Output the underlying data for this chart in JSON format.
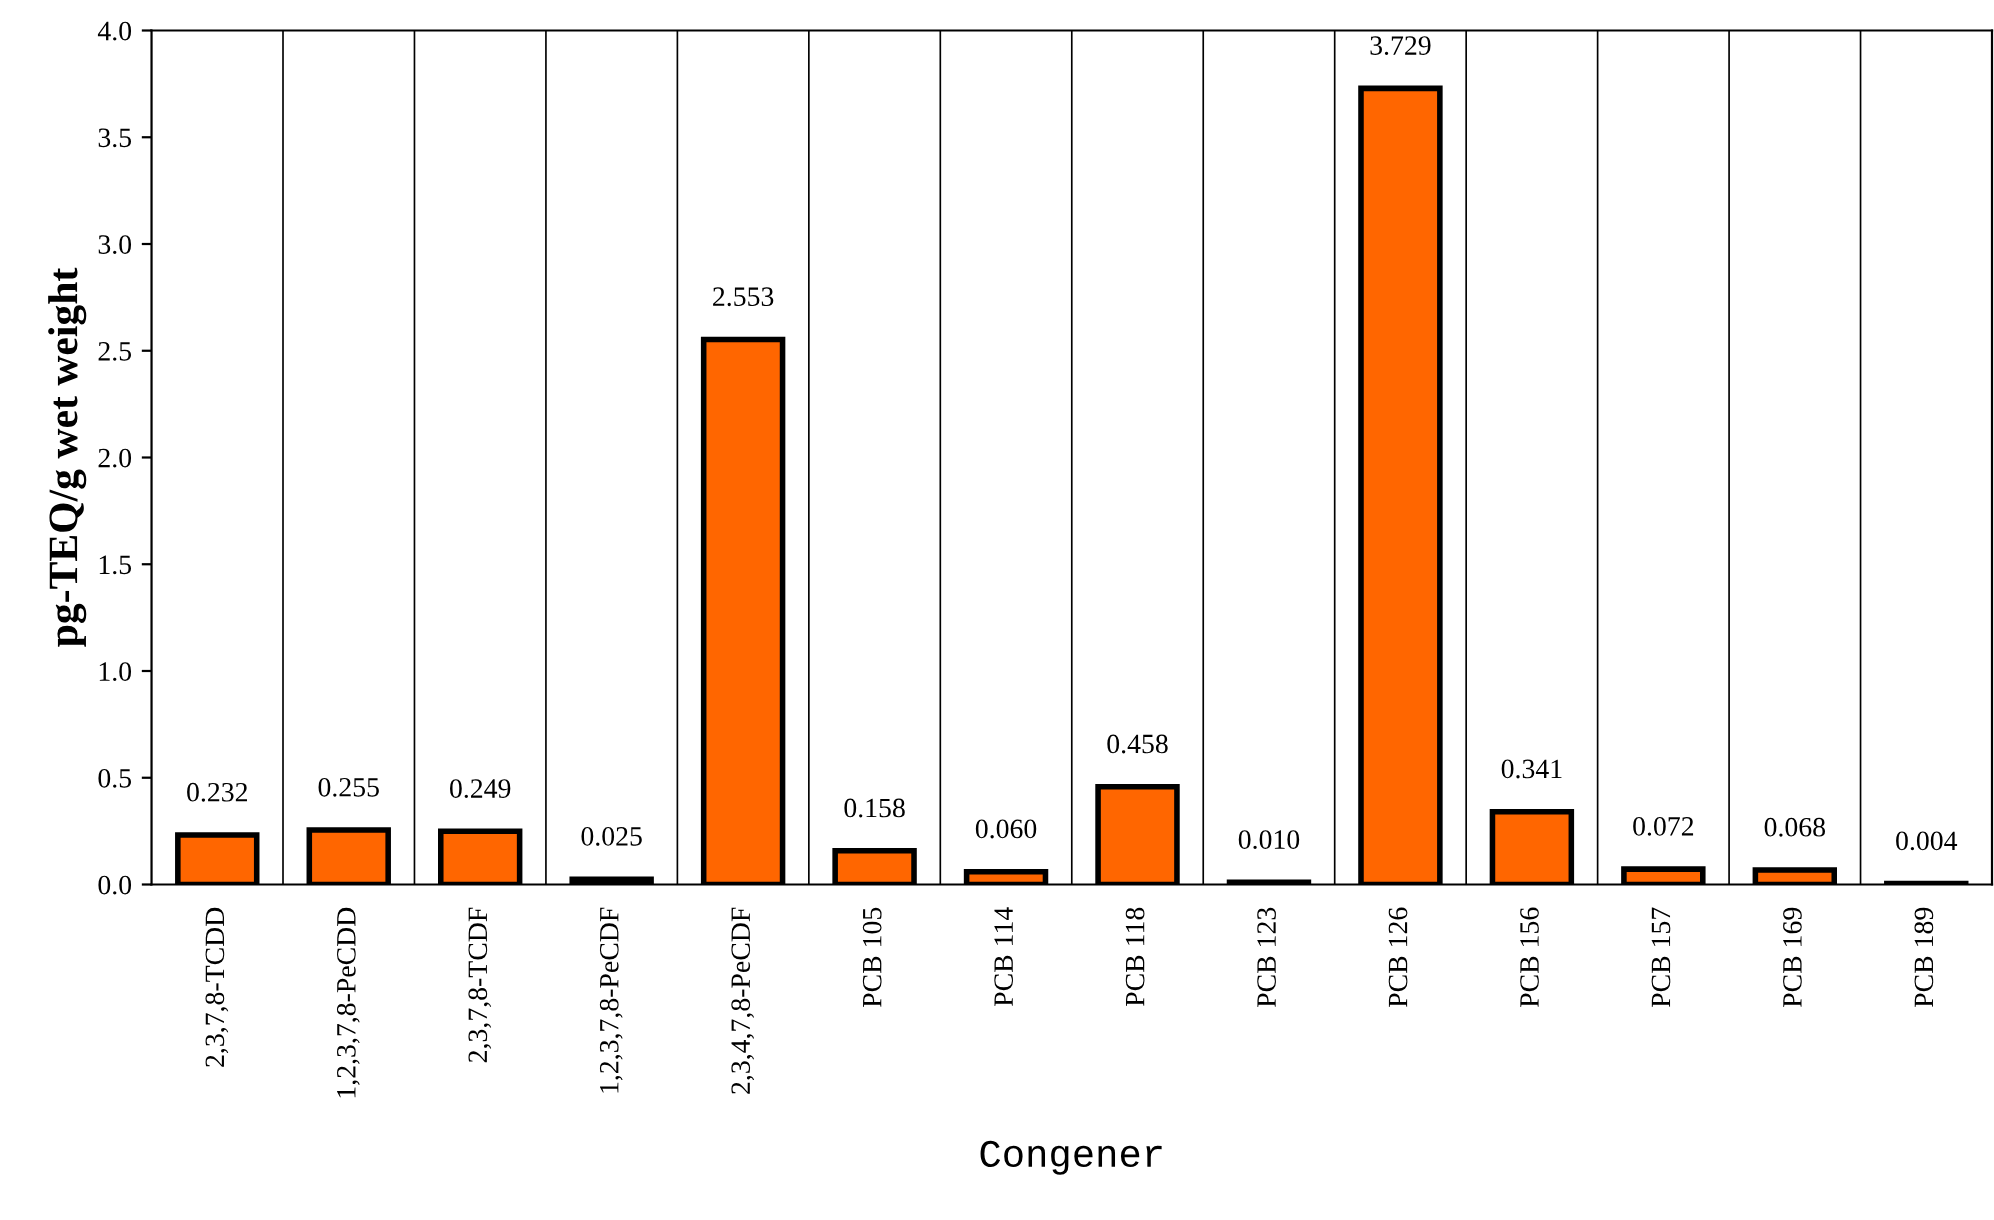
{
  "chart_data": {
    "type": "bar",
    "xlabel": "Congener",
    "ylabel": "pg-TEQ/g wet weight",
    "categories": [
      "2,3,7,8-TCDD",
      "1,2,3,7,8-PeCDD",
      "2,3,7,8-TCDF",
      "1,2,3,7,8-PeCDF",
      "2,3,4,7,8-PeCDF",
      "PCB 105",
      "PCB 114",
      "PCB 118",
      "PCB 123",
      "PCB 126",
      "PCB 156",
      "PCB 157",
      "PCB 169",
      "PCB 189"
    ],
    "values": [
      0.232,
      0.255,
      0.249,
      0.025,
      2.553,
      0.158,
      0.06,
      0.458,
      0.01,
      3.729,
      0.341,
      0.072,
      0.068,
      0.004
    ],
    "value_labels": [
      "0.232",
      "0.255",
      "0.249",
      "0.025",
      "2.553",
      "0.158",
      "0.060",
      "0.458",
      "0.010",
      "3.729",
      "0.341",
      "0.072",
      "0.068",
      "0.004"
    ],
    "color": "#ff6600",
    "ylim": [
      0,
      4
    ],
    "yticks": [
      {
        "value": 0,
        "label": "0.0"
      },
      {
        "value": 0.5,
        "label": "0.5"
      },
      {
        "value": 1,
        "label": "1.0"
      },
      {
        "value": 1.5,
        "label": "1.5"
      },
      {
        "value": 2,
        "label": "2.0"
      },
      {
        "value": 2.5,
        "label": "2.5"
      },
      {
        "value": 3,
        "label": "3.0"
      },
      {
        "value": 3.5,
        "label": "3.5"
      },
      {
        "value": 4,
        "label": "4.0"
      }
    ],
    "grid": "x",
    "legend": false
  }
}
